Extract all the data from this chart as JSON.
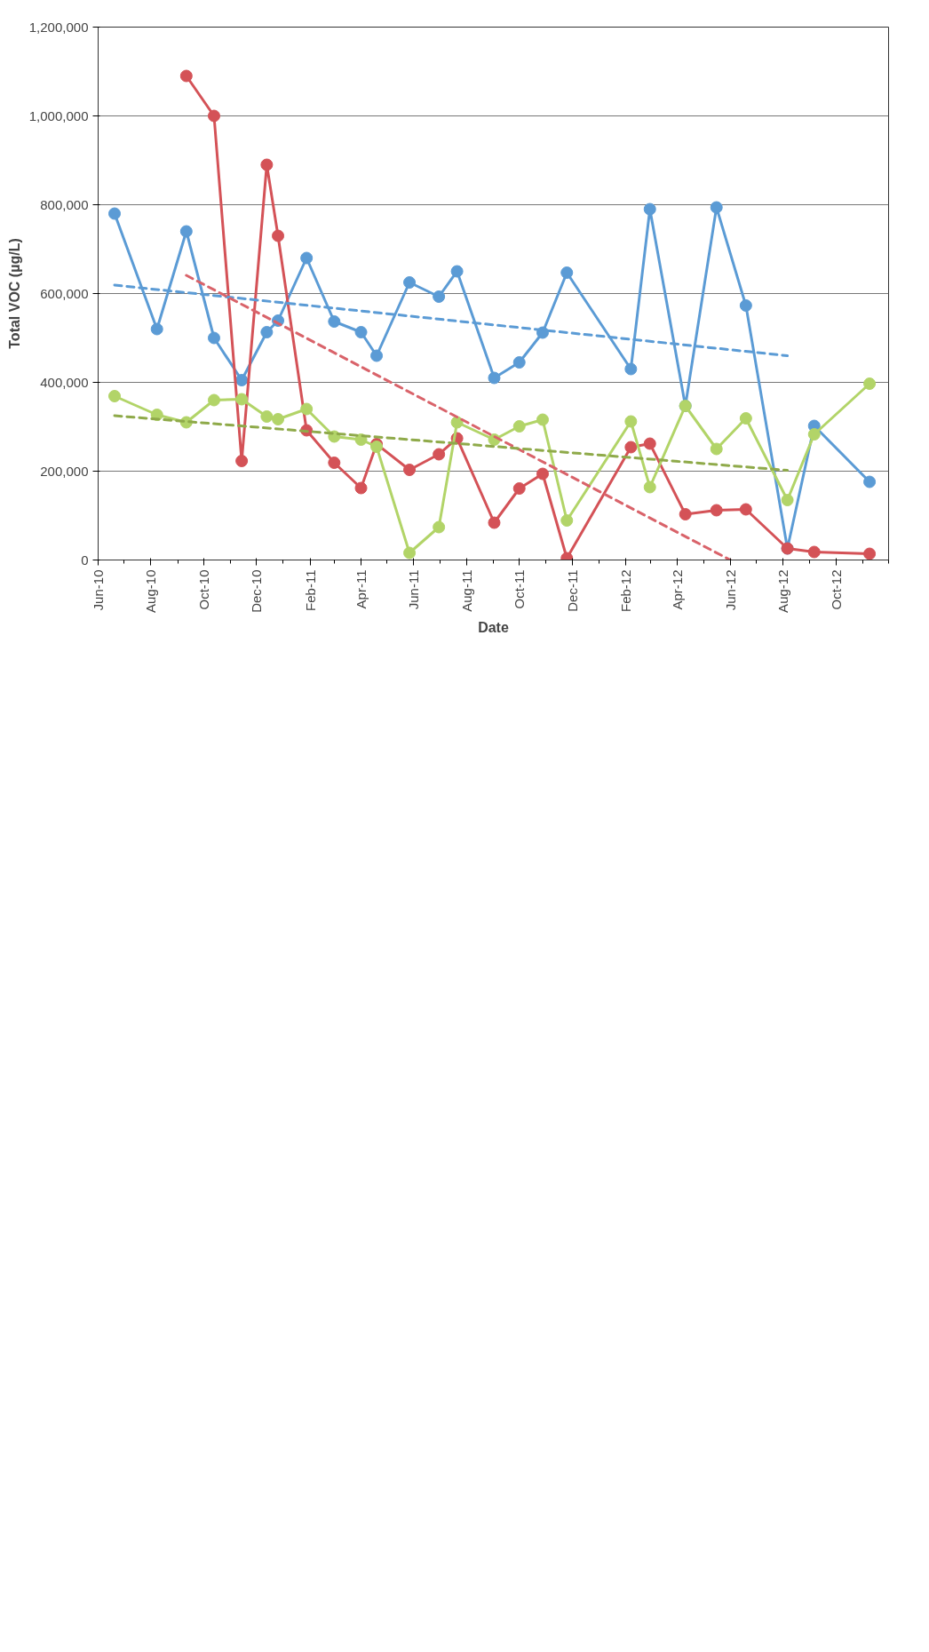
{
  "chart_data": {
    "type": "line",
    "xlabel": "Date",
    "ylabel": "Total VOC (µg/L)",
    "x": [
      "2010-06-20",
      "2010-08-08",
      "2010-09-11",
      "2010-10-13",
      "2010-11-14",
      "2010-12-13",
      "2010-12-26",
      "2011-01-28",
      "2011-03-01",
      "2011-04-01",
      "2011-04-19",
      "2011-05-27",
      "2011-06-30",
      "2011-07-21",
      "2011-09-02",
      "2011-10-01",
      "2011-10-28",
      "2011-11-25",
      "2012-02-07",
      "2012-02-29",
      "2012-04-10",
      "2012-05-16",
      "2012-06-19",
      "2012-08-06",
      "2012-09-06",
      "2012-11-09"
    ],
    "series": [
      {
        "color": "#5b9bd5",
        "values": [
          780000,
          520000,
          740000,
          500000,
          405000,
          513000,
          539000,
          680000,
          537000,
          513000,
          460000,
          625000,
          593000,
          650000,
          410000,
          445000,
          512000,
          647000,
          430000,
          790000,
          347000,
          794000,
          573000,
          26000,
          302000,
          176000
        ]
      },
      {
        "color": "#d45257",
        "values": [
          null,
          null,
          1090000,
          1000000,
          223000,
          890000,
          730000,
          292000,
          219000,
          162000,
          261000,
          203000,
          238000,
          274000,
          84000,
          161000,
          194000,
          4000,
          254000,
          262000,
          103000,
          112000,
          114000,
          26000,
          18000,
          14000
        ]
      },
      {
        "color": "#b2d468",
        "values": [
          369000,
          327000,
          310000,
          360000,
          362000,
          323000,
          317000,
          340000,
          278000,
          271000,
          255000,
          16000,
          74000,
          310000,
          271000,
          301000,
          316000,
          89000,
          312000,
          164000,
          347000,
          250000,
          319000,
          135000,
          283000,
          397000
        ]
      },
      {
        "color": "#5b9bd5",
        "x": [
          "2010-06-20",
          "2012-08-06"
        ],
        "values": [
          619000,
          460000
        ],
        "marker": "none",
        "line_style": "dashed"
      },
      {
        "color": "#d9636a",
        "x": [
          "2010-09-11",
          "2012-06-01"
        ],
        "values": [
          641000,
          0
        ],
        "marker": "none",
        "line_style": "dashed"
      },
      {
        "color": "#8faa4a",
        "x": [
          "2010-06-20",
          "2012-08-06"
        ],
        "values": [
          325000,
          202000
        ],
        "marker": "none",
        "line_style": "dashed"
      }
    ],
    "marker": "circle",
    "line_style": "solid",
    "grid": "y",
    "xlim": [
      "2010-06-01",
      "2012-12-01"
    ],
    "xticks": [
      {
        "value": "2010-06-01",
        "label": "Jun-10"
      },
      {
        "value": "2010-07-01",
        "label": null
      },
      {
        "value": "2010-08-01",
        "label": "Aug-10"
      },
      {
        "value": "2010-09-01",
        "label": null
      },
      {
        "value": "2010-10-01",
        "label": "Oct-10"
      },
      {
        "value": "2010-11-01",
        "label": null
      },
      {
        "value": "2010-12-01",
        "label": "Dec-10"
      },
      {
        "value": "2011-01-01",
        "label": null
      },
      {
        "value": "2011-02-01",
        "label": "Feb-11"
      },
      {
        "value": "2011-03-01",
        "label": null
      },
      {
        "value": "2011-04-01",
        "label": "Apr-11"
      },
      {
        "value": "2011-05-01",
        "label": null
      },
      {
        "value": "2011-06-01",
        "label": "Jun-11"
      },
      {
        "value": "2011-07-01",
        "label": null
      },
      {
        "value": "2011-08-01",
        "label": "Aug-11"
      },
      {
        "value": "2011-09-01",
        "label": null
      },
      {
        "value": "2011-10-01",
        "label": "Oct-11"
      },
      {
        "value": "2011-11-01",
        "label": null
      },
      {
        "value": "2011-12-01",
        "label": "Dec-11"
      },
      {
        "value": "2012-01-01",
        "label": null
      },
      {
        "value": "2012-02-01",
        "label": "Feb-12"
      },
      {
        "value": "2012-03-01",
        "label": null
      },
      {
        "value": "2012-04-01",
        "label": "Apr-12"
      },
      {
        "value": "2012-05-01",
        "label": null
      },
      {
        "value": "2012-06-01",
        "label": "Jun-12"
      },
      {
        "value": "2012-07-01",
        "label": null
      },
      {
        "value": "2012-08-01",
        "label": "Aug-12"
      },
      {
        "value": "2012-09-01",
        "label": null
      },
      {
        "value": "2012-10-01",
        "label": "Oct-12"
      },
      {
        "value": "2012-11-01",
        "label": null
      },
      {
        "value": "2012-12-01",
        "label": null
      }
    ],
    "ylim": [
      0,
      1200000
    ],
    "yticks": [
      0,
      {
        "value": 200000,
        "label": "200,000"
      },
      {
        "value": 400000,
        "label": "400,000"
      },
      {
        "value": 600000,
        "label": "600,000"
      },
      {
        "value": 800000,
        "label": "800,000"
      },
      {
        "value": 1000000,
        "label": "1,000,000"
      },
      {
        "value": 1200000,
        "label": "1,200,000"
      }
    ]
  }
}
